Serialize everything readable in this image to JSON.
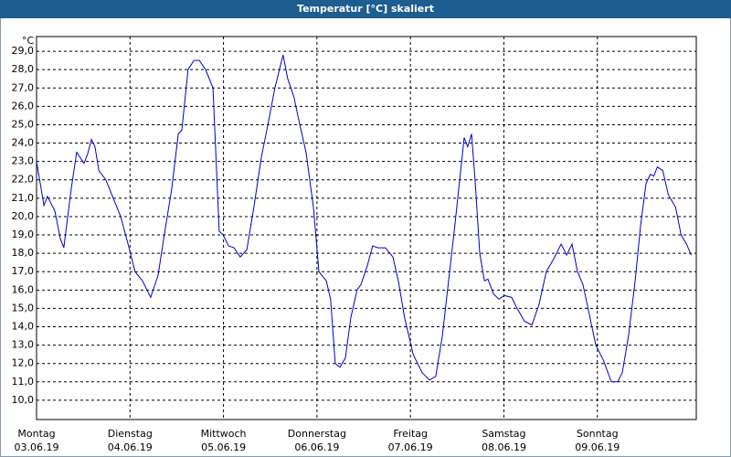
{
  "chart_data": {
    "type": "line",
    "title": "Temperatur [°C] skaliert",
    "y_unit": "°C",
    "x": [
      0,
      1.9,
      2.8,
      4.7,
      6.1,
      7.0,
      8.9,
      10.3,
      12.2,
      13.1,
      14.1,
      15.0,
      16.0,
      17.8,
      19.7,
      21.6,
      23.5,
      25.3,
      27.2,
      29.3,
      31.2,
      32.8,
      34.7,
      36.4,
      37.3,
      38.9,
      40.4,
      41.8,
      43.4,
      45.3,
      46.9,
      47.9,
      49.3,
      50.7,
      52.3,
      54.0,
      55.8,
      57.7,
      59.4,
      61.2,
      63.3,
      64.5,
      66.1,
      67.6,
      69.2,
      71.1,
      72.5,
      74.4,
      75.5,
      76.7,
      77.9,
      79.3,
      80.7,
      82.3,
      83.3,
      84.9,
      86.3,
      87.7,
      89.6,
      91.5,
      92.9,
      94.5,
      96.7,
      99.0,
      100.9,
      102.5,
      104.2,
      105.8,
      107.4,
      108.9,
      109.8,
      110.7,
      111.7,
      112.6,
      113.8,
      115.0,
      115.9,
      117.3,
      118.7,
      120.1,
      122.0,
      123.4,
      125.3,
      127.2,
      129.0,
      130.9,
      132.8,
      134.7,
      136.1,
      137.5,
      138.9,
      140.3,
      141.9,
      143.6,
      145.5,
      147.6,
      149.2,
      150.4,
      152.0,
      153.7,
      155.1,
      156.5,
      157.6,
      158.5,
      159.4,
      160.8,
      162.2,
      164.1,
      165.5,
      166.9,
      168.1
    ],
    "values": [
      23.0,
      20.6,
      21.1,
      20.3,
      18.8,
      18.3,
      21.5,
      23.5,
      22.9,
      23.4,
      24.2,
      23.8,
      22.5,
      22.0,
      21.0,
      20.0,
      18.5,
      17.0,
      16.5,
      15.6,
      16.8,
      19.0,
      21.5,
      24.5,
      24.7,
      28.0,
      28.5,
      28.5,
      28.0,
      27.0,
      19.2,
      19.0,
      18.4,
      18.3,
      17.8,
      18.2,
      20.5,
      23.2,
      25.0,
      27.0,
      28.8,
      27.5,
      26.5,
      25.0,
      23.5,
      20.5,
      17.0,
      16.5,
      15.5,
      12.0,
      11.8,
      12.3,
      14.5,
      16.0,
      16.3,
      17.3,
      18.4,
      18.3,
      18.3,
      17.8,
      16.5,
      14.5,
      12.5,
      11.5,
      11.1,
      11.3,
      13.5,
      16.5,
      19.5,
      22.5,
      24.3,
      23.8,
      24.5,
      22.0,
      18.0,
      16.5,
      16.6,
      15.8,
      15.5,
      15.7,
      15.6,
      15.0,
      14.3,
      14.1,
      15.2,
      17.0,
      17.7,
      18.5,
      17.9,
      18.5,
      17.0,
      16.3,
      14.7,
      13.0,
      12.2,
      11.0,
      11.0,
      11.5,
      13.5,
      16.5,
      19.5,
      21.8,
      22.3,
      22.2,
      22.7,
      22.5,
      21.2,
      20.5,
      19.0,
      18.5,
      17.9
    ],
    "color": "#0000c8",
    "xlim": [
      0,
      169.4
    ],
    "xticks": [
      {
        "value": 0,
        "label": "Montag"
      },
      {
        "value": 24,
        "label": "Dienstag"
      },
      {
        "value": 48,
        "label": "Mittwoch"
      },
      {
        "value": 72,
        "label": "Donnerstag"
      },
      {
        "value": 96,
        "label": "Freitag"
      },
      {
        "value": 120,
        "label": "Samstag"
      },
      {
        "value": 144,
        "label": "Sonntag"
      }
    ],
    "xtick_dates": [
      "03.06.19",
      "04.06.19",
      "05.06.19",
      "06.06.19",
      "07.06.19",
      "08.06.19",
      "09.06.19"
    ],
    "ylim": [
      8.95,
      29.8
    ],
    "yticks": [
      {
        "value": 10,
        "label": "10,0"
      },
      {
        "value": 11,
        "label": "11,0"
      },
      {
        "value": 12,
        "label": "12,0"
      },
      {
        "value": 13,
        "label": "13,0"
      },
      {
        "value": 14,
        "label": "14,0"
      },
      {
        "value": 15,
        "label": "15,0"
      },
      {
        "value": 16,
        "label": "16,0"
      },
      {
        "value": 17,
        "label": "17,0"
      },
      {
        "value": 18,
        "label": "18,0"
      },
      {
        "value": 19,
        "label": "19,0"
      },
      {
        "value": 20,
        "label": "20,0"
      },
      {
        "value": 21,
        "label": "21,0"
      },
      {
        "value": 22,
        "label": "22,0"
      },
      {
        "value": 23,
        "label": "23,0"
      },
      {
        "value": 24,
        "label": "24,0"
      },
      {
        "value": 25,
        "label": "25,0"
      },
      {
        "value": 26,
        "label": "26,0"
      },
      {
        "value": 27,
        "label": "27,0"
      },
      {
        "value": 28,
        "label": "28,0"
      },
      {
        "value": 29,
        "label": "29,0"
      }
    ],
    "grid": true
  }
}
